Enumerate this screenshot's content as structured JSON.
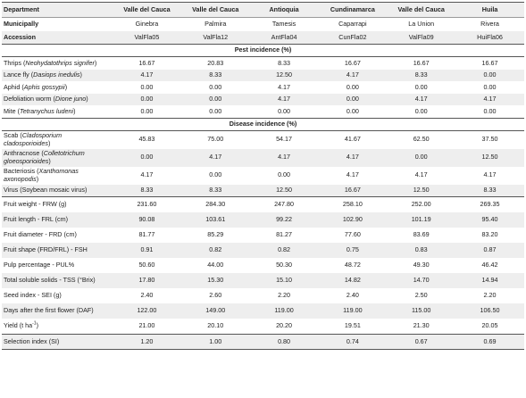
{
  "header": {
    "department_label": "Department",
    "municipality_label": "Municipally",
    "accession_label": "Accession",
    "departments": [
      "Valle del Cauca",
      "Valle del Cauca",
      "Antioquia",
      "Cundinamarca",
      "Valle del Cauca",
      "Huila"
    ],
    "municipalities": [
      "Ginebra",
      "Palmira",
      "Tamesis",
      "Caparrapi",
      "La Union",
      "Rivera"
    ],
    "accessions": [
      "ValFla05",
      "ValFla12",
      "AntFla04",
      "CunFla02",
      "ValFla09",
      "HuiFla06"
    ]
  },
  "sections": {
    "pest": "Pest incidence (%)",
    "disease": "Disease incidence (%)"
  },
  "pest_rows": [
    {
      "name": "Thrips",
      "sci": "Neohydatothrips signifer",
      "values": [
        "16.67",
        "20.83",
        "8.33",
        "16.67",
        "16.67",
        "16.67"
      ]
    },
    {
      "name": "Lance fly",
      "sci": "Dasiops inedulis",
      "values": [
        "4.17",
        "8.33",
        "12.50",
        "4.17",
        "8.33",
        "0.00"
      ]
    },
    {
      "name": "Aphid",
      "sci": "Aphis gossypii",
      "values": [
        "0.00",
        "0.00",
        "4.17",
        "0.00",
        "0.00",
        "0.00"
      ]
    },
    {
      "name": "Defoliation worm",
      "sci": "Dione juno",
      "values": [
        "0.00",
        "0.00",
        "4.17",
        "0.00",
        "4.17",
        "4.17"
      ]
    },
    {
      "name": "Mite",
      "sci": "Tetranychus ludeni",
      "values": [
        "0.00",
        "0.00",
        "0.00",
        "0.00",
        "0.00",
        "0.00"
      ]
    }
  ],
  "disease_rows": [
    {
      "name": "Scab",
      "sci_line1": "Cladosporium",
      "sci_line2": "cladosporioides",
      "values": [
        "45.83",
        "75.00",
        "54.17",
        "41.67",
        "62.50",
        "37.50"
      ]
    },
    {
      "name": "Anthracnose",
      "sci_line1": "Colletotrichum",
      "sci_line2": "gloeosporioides",
      "values": [
        "0.00",
        "4.17",
        "4.17",
        "4.17",
        "0.00",
        "12.50"
      ]
    },
    {
      "name": "Bacteriosis",
      "sci_line1": "Xanthomonas",
      "sci_line2": "axonopodis",
      "values": [
        "4.17",
        "0.00",
        "0.00",
        "4.17",
        "4.17",
        "4.17"
      ]
    },
    {
      "name": "Virus (Soybean mosaic virus)",
      "values": [
        "8.33",
        "8.33",
        "12.50",
        "16.67",
        "12.50",
        "8.33"
      ]
    }
  ],
  "trait_rows": [
    {
      "label": "Fruit weight - FRW (g)",
      "values": [
        "231.60",
        "284.30",
        "247.80",
        "258.10",
        "252.00",
        "269.35"
      ]
    },
    {
      "label": "Fruit length - FRL (cm)",
      "values": [
        "90.08",
        "103.61",
        "99.22",
        "102.90",
        "101.19",
        "95.40"
      ]
    },
    {
      "label": "Fruit diameter - FRD (cm)",
      "values": [
        "81.77",
        "85.29",
        "81.27",
        "77.60",
        "83.69",
        "83.20"
      ]
    },
    {
      "label": "Fruit shape (FRD/FRL) - FSH",
      "values": [
        "0.91",
        "0.82",
        "0.82",
        "0.75",
        "0.83",
        "0.87"
      ]
    },
    {
      "label": "Pulp percentage - PUL%",
      "values": [
        "50.60",
        "44.00",
        "50.30",
        "48.72",
        "49.30",
        "46.42"
      ]
    },
    {
      "label": "Total soluble solids - TSS (°Brix)",
      "values": [
        "17.80",
        "15.30",
        "15.10",
        "14.82",
        "14.70",
        "14.94"
      ]
    },
    {
      "label": "Seed index - SEI (g)",
      "values": [
        "2.40",
        "2.60",
        "2.20",
        "2.40",
        "2.50",
        "2.20"
      ]
    },
    {
      "label": "Days after the first flower (DAF)",
      "values": [
        "122.00",
        "149.00",
        "119.00",
        "119.00",
        "115.00",
        "106.50"
      ]
    },
    {
      "label_main": "Yield (t ha",
      "label_sup": "-1",
      "label_end": ")",
      "values": [
        "21.00",
        "20.10",
        "20.20",
        "19.51",
        "21.30",
        "20.05"
      ]
    }
  ],
  "selection_row": {
    "label": "Selection index (SI)",
    "values": [
      "1.20",
      "1.00",
      "0.80",
      "0.74",
      "0.67",
      "0.69"
    ]
  }
}
